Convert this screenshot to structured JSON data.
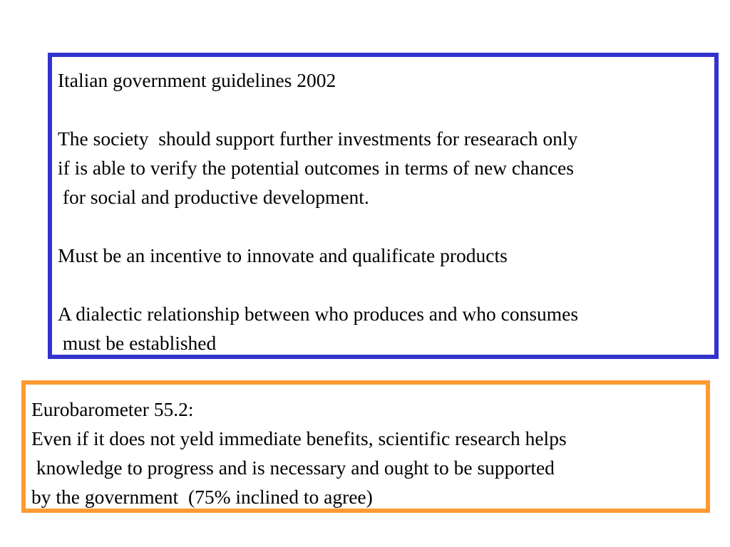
{
  "guidelines_box": {
    "title": "Italian government guidelines 2002",
    "paragraph1": [
      "The society  should support further investments for researach only",
      "if is able to verify the potential outcomes in terms of new chances",
      " for social and productive development."
    ],
    "paragraph2": [
      "Must be an incentive to innovate and qualificate products"
    ],
    "paragraph3": [
      "A dialectic relationship between who produces and who consumes",
      " must be established"
    ],
    "border_color": "#3333cc"
  },
  "eurobarometer_box": {
    "title": "Eurobarometer 55.2:",
    "lines": [
      "Even if it does not yeld immediate benefits, scientific research helps",
      " knowledge to progress and is necessary and ought to be supported",
      "by the government  (75% inclined to agree)"
    ],
    "border_color": "#ff9933"
  }
}
